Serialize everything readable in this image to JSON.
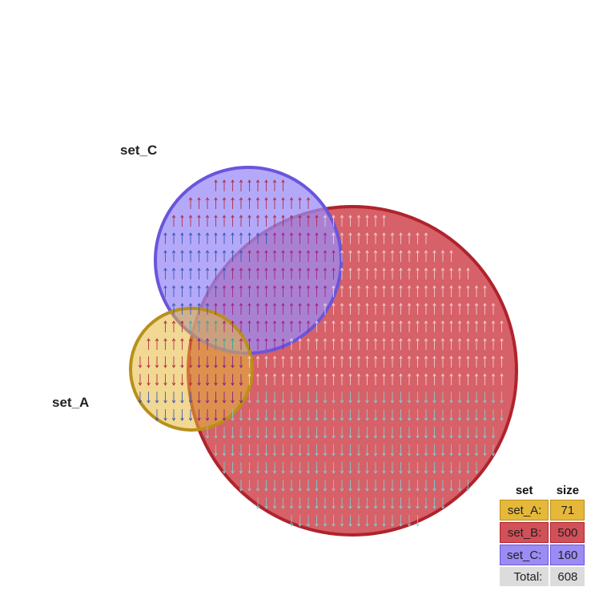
{
  "sets": [
    {
      "name": "set_A",
      "size": 71,
      "color": "#e6b83a",
      "stroke": "#b8901a"
    },
    {
      "name": "set_B",
      "size": 500,
      "color": "#d25058",
      "stroke": "#b0232c"
    },
    {
      "name": "set_C",
      "size": 160,
      "color": "#9b8cf5",
      "stroke": "#6a55dd"
    }
  ],
  "legend": {
    "header_set": "set",
    "header_size": "size",
    "rows": [
      {
        "label": "set_A:",
        "value": "71"
      },
      {
        "label": "set_B:",
        "value": "500"
      },
      {
        "label": "set_C:",
        "value": "160"
      }
    ],
    "total_label": "Total:",
    "total_value": "608"
  },
  "labels": {
    "set_A": "set_A",
    "set_C": "set_C"
  }
}
